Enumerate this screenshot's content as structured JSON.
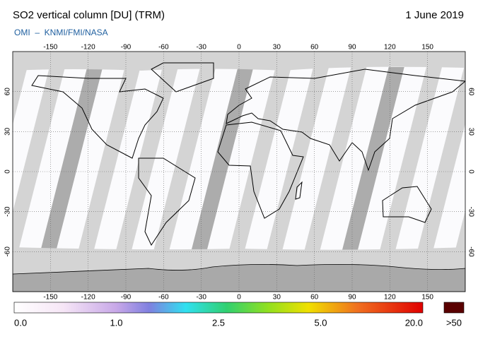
{
  "title": "SO2 vertical column [DU] (TRM)",
  "date": "1 June 2019",
  "source": "OMI  –  KNMI/FMI/NASA",
  "lon_ticks": [
    -150,
    -120,
    -90,
    -60,
    -30,
    0,
    30,
    60,
    90,
    120,
    150
  ],
  "lat_ticks": [
    60,
    30,
    0,
    -30,
    -60
  ],
  "colorbar": {
    "labels": [
      "0.0",
      "1.0",
      "2.5",
      "5.0",
      "20.0"
    ],
    "overflow_label": ">50"
  }
}
